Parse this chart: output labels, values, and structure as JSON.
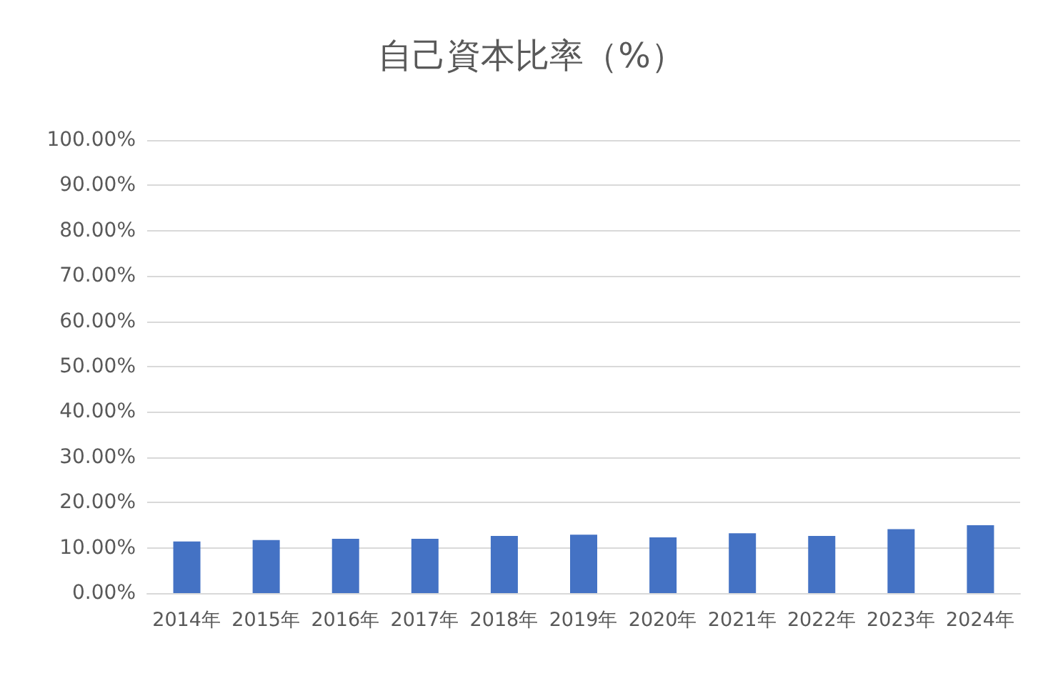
{
  "chart_data": {
    "type": "bar",
    "title": "自己資本比率（%）",
    "categories": [
      "2014年",
      "2015年",
      "2016年",
      "2017年",
      "2018年",
      "2019年",
      "2020年",
      "2021年",
      "2022年",
      "2023年",
      "2024年"
    ],
    "values": [
      11.4,
      11.7,
      12.0,
      12.0,
      12.6,
      12.9,
      12.3,
      13.2,
      12.6,
      14.1,
      15.0
    ],
    "color": "#4472c4",
    "ylim": [
      0,
      100
    ],
    "yticks": [
      {
        "value": 0,
        "label": "0.00%"
      },
      {
        "value": 10,
        "label": "10.00%"
      },
      {
        "value": 20,
        "label": "20.00%"
      },
      {
        "value": 30,
        "label": "30.00%"
      },
      {
        "value": 40,
        "label": "40.00%"
      },
      {
        "value": 50,
        "label": "50.00%"
      },
      {
        "value": 60,
        "label": "60.00%"
      },
      {
        "value": 70,
        "label": "70.00%"
      },
      {
        "value": 80,
        "label": "80.00%"
      },
      {
        "value": 90,
        "label": "90.00%"
      },
      {
        "value": 100,
        "label": "100.00%"
      }
    ],
    "grid": true
  }
}
